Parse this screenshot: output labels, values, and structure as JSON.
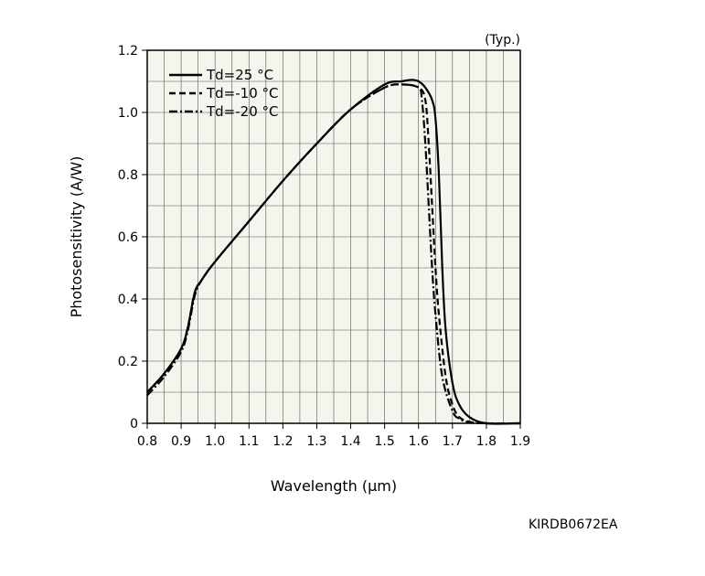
{
  "note": "(Typ.)",
  "doc_code": "KIRDB0672EA",
  "colors": {
    "plot_background": "#f5f4ed",
    "grid": "#555555",
    "line": "#000000"
  },
  "chart_data": {
    "type": "line",
    "title": "",
    "xlabel": "Wavelength (μm)",
    "ylabel": "Photosensitivity (A/W)",
    "xlim": [
      0.8,
      1.9
    ],
    "ylim": [
      0,
      1.2
    ],
    "grid": true,
    "legend_position": "top-left",
    "x_ticks": [
      0.8,
      0.9,
      1.0,
      1.1,
      1.2,
      1.3,
      1.4,
      1.5,
      1.6,
      1.7,
      1.8,
      1.9
    ],
    "x_tick_labels": [
      "0.8",
      "0.9",
      "1.0",
      "1.1",
      "1.2",
      "1.3",
      "1.4",
      "1.5",
      "1.6",
      "1.7",
      "1.8",
      "1.9"
    ],
    "y_ticks": [
      0,
      0.2,
      0.4,
      0.6,
      0.8,
      1.0,
      1.2
    ],
    "y_tick_labels": [
      "0",
      "0.2",
      "0.4",
      "0.6",
      "0.8",
      "1.0",
      "1.2"
    ],
    "series": [
      {
        "name": "Td=25 °C",
        "line_style": "solid",
        "x": [
          0.8,
          0.85,
          0.9,
          0.92,
          0.94,
          0.96,
          1.0,
          1.1,
          1.2,
          1.3,
          1.4,
          1.5,
          1.55,
          1.58,
          1.6,
          1.62,
          1.64,
          1.65,
          1.66,
          1.67,
          1.68,
          1.7,
          1.72,
          1.75,
          1.8,
          1.9
        ],
        "y": [
          0.1,
          0.16,
          0.24,
          0.31,
          0.42,
          0.46,
          0.52,
          0.65,
          0.78,
          0.9,
          1.01,
          1.09,
          1.1,
          1.105,
          1.1,
          1.08,
          1.04,
          0.98,
          0.8,
          0.5,
          0.3,
          0.13,
          0.06,
          0.02,
          0.0,
          0.0
        ]
      },
      {
        "name": "Td=-10 °C",
        "line_style": "dashed",
        "x": [
          0.8,
          0.85,
          0.9,
          0.92,
          0.94,
          0.96,
          1.0,
          1.1,
          1.2,
          1.3,
          1.4,
          1.5,
          1.55,
          1.6,
          1.62,
          1.63,
          1.64,
          1.65,
          1.66,
          1.68,
          1.7,
          1.72,
          1.75,
          1.8,
          1.9
        ],
        "y": [
          0.1,
          0.16,
          0.24,
          0.31,
          0.42,
          0.46,
          0.52,
          0.65,
          0.78,
          0.9,
          1.01,
          1.08,
          1.09,
          1.08,
          1.04,
          0.9,
          0.7,
          0.5,
          0.35,
          0.15,
          0.06,
          0.02,
          0.005,
          0.0,
          0.0
        ]
      },
      {
        "name": "Td=-20 °C",
        "line_style": "dashdot",
        "x": [
          0.8,
          0.85,
          0.9,
          0.92,
          0.94,
          0.96,
          1.0,
          1.1,
          1.2,
          1.3,
          1.4,
          1.5,
          1.55,
          1.6,
          1.61,
          1.62,
          1.63,
          1.64,
          1.65,
          1.67,
          1.7,
          1.72,
          1.75,
          1.8,
          1.9
        ],
        "y": [
          0.09,
          0.15,
          0.23,
          0.3,
          0.41,
          0.46,
          0.52,
          0.65,
          0.78,
          0.9,
          1.01,
          1.08,
          1.09,
          1.08,
          1.04,
          0.9,
          0.7,
          0.5,
          0.35,
          0.15,
          0.04,
          0.015,
          0.003,
          0.0,
          0.0
        ]
      }
    ]
  }
}
